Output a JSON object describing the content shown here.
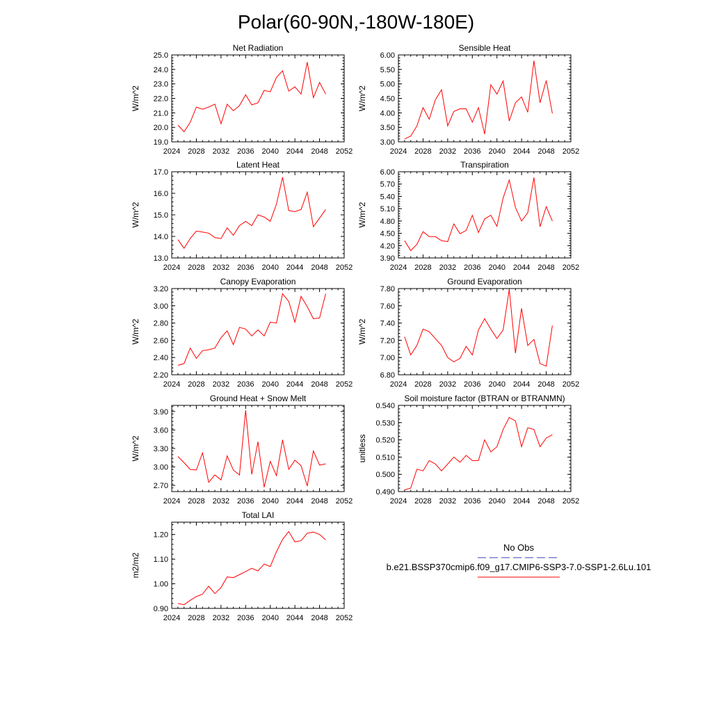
{
  "title": "Polar(60-90N,-180W-180E)",
  "colors": {
    "series": "#ff0000",
    "obs": "#3b3bbf",
    "axis": "#000000"
  },
  "legend": {
    "obs_label": "No Obs",
    "model_label": "b.e21.BSSP370cmip6.f09_g17.CMIP6-SSP3-7.0-SSP1-2.6Lu.101"
  },
  "chart_data": [
    {
      "type": "line",
      "title": "Net Radiation",
      "ylabel": "W/m^2",
      "xlim": [
        2024,
        2052
      ],
      "xticks": [
        2024,
        2028,
        2032,
        2036,
        2040,
        2044,
        2048,
        2052
      ],
      "ylim": [
        19.0,
        25.0
      ],
      "yticks": [
        "19.0",
        "20.0",
        "21.0",
        "22.0",
        "23.0",
        "24.0",
        "25.0"
      ],
      "x": [
        2025,
        2026,
        2027,
        2028,
        2029,
        2030,
        2031,
        2032,
        2033,
        2034,
        2035,
        2036,
        2037,
        2038,
        2039,
        2040,
        2041,
        2042,
        2043,
        2044,
        2045,
        2046,
        2047,
        2048,
        2049
      ],
      "series": [
        {
          "values": [
            20.15,
            19.7,
            20.35,
            21.4,
            21.25,
            21.4,
            21.6,
            20.25,
            21.6,
            21.15,
            21.5,
            22.25,
            21.55,
            21.7,
            22.55,
            22.45,
            23.45,
            23.9,
            22.5,
            22.8,
            22.3,
            24.5,
            22.05,
            23.1,
            22.3
          ]
        }
      ]
    },
    {
      "type": "line",
      "title": "Sensible Heat",
      "ylabel": "W/m^2",
      "xlim": [
        2024,
        2052
      ],
      "xticks": [
        2024,
        2028,
        2032,
        2036,
        2040,
        2044,
        2048,
        2052
      ],
      "ylim": [
        3.0,
        6.0
      ],
      "yticks": [
        "3.00",
        "3.50",
        "4.00",
        "4.50",
        "5.00",
        "5.50",
        "6.00"
      ],
      "x": [
        2025,
        2026,
        2027,
        2028,
        2029,
        2030,
        2031,
        2032,
        2033,
        2034,
        2035,
        2036,
        2037,
        2038,
        2039,
        2040,
        2041,
        2042,
        2043,
        2044,
        2045,
        2046,
        2047,
        2048,
        2049
      ],
      "series": [
        {
          "values": [
            3.1,
            3.2,
            3.55,
            4.18,
            3.78,
            4.45,
            4.8,
            3.55,
            4.05,
            4.14,
            4.14,
            3.68,
            4.18,
            3.27,
            4.97,
            4.65,
            5.1,
            3.72,
            4.35,
            4.55,
            4.02,
            5.8,
            4.35,
            5.12,
            3.98
          ]
        }
      ]
    },
    {
      "type": "line",
      "title": "Latent Heat",
      "ylabel": "W/m^2",
      "xlim": [
        2024,
        2052
      ],
      "xticks": [
        2024,
        2028,
        2032,
        2036,
        2040,
        2044,
        2048,
        2052
      ],
      "ylim": [
        13.0,
        17.0
      ],
      "yticks": [
        "13.0",
        "14.0",
        "15.0",
        "16.0",
        "17.0"
      ],
      "x": [
        2025,
        2026,
        2027,
        2028,
        2029,
        2030,
        2031,
        2032,
        2033,
        2034,
        2035,
        2036,
        2037,
        2038,
        2039,
        2040,
        2041,
        2042,
        2043,
        2044,
        2045,
        2046,
        2047,
        2048,
        2049
      ],
      "series": [
        {
          "values": [
            13.85,
            13.45,
            13.9,
            14.25,
            14.2,
            14.15,
            13.95,
            13.9,
            14.4,
            14.05,
            14.5,
            14.7,
            14.5,
            15.0,
            14.9,
            14.7,
            15.5,
            16.75,
            15.2,
            15.15,
            15.25,
            16.05,
            14.45,
            14.85,
            15.25
          ]
        }
      ]
    },
    {
      "type": "line",
      "title": "Transpiration",
      "ylabel": "W/m^2",
      "xlim": [
        2024,
        2052
      ],
      "xticks": [
        2024,
        2028,
        2032,
        2036,
        2040,
        2044,
        2048,
        2052
      ],
      "ylim": [
        3.9,
        6.0
      ],
      "yticks": [
        "3.90",
        "4.20",
        "4.50",
        "4.80",
        "5.10",
        "5.40",
        "5.70",
        "6.00"
      ],
      "x": [
        2025,
        2026,
        2027,
        2028,
        2029,
        2030,
        2031,
        2032,
        2033,
        2034,
        2035,
        2036,
        2037,
        2038,
        2039,
        2040,
        2041,
        2042,
        2043,
        2044,
        2045,
        2046,
        2047,
        2048,
        2049
      ],
      "series": [
        {
          "values": [
            4.32,
            4.08,
            4.23,
            4.54,
            4.42,
            4.42,
            4.32,
            4.3,
            4.73,
            4.49,
            4.57,
            4.94,
            4.52,
            4.85,
            4.94,
            4.67,
            5.36,
            5.8,
            5.13,
            4.8,
            5.0,
            5.86,
            4.66,
            5.15,
            4.8
          ]
        }
      ]
    },
    {
      "type": "line",
      "title": "Canopy Evaporation",
      "ylabel": "W/m^2",
      "xlim": [
        2024,
        2052
      ],
      "xticks": [
        2024,
        2028,
        2032,
        2036,
        2040,
        2044,
        2048,
        2052
      ],
      "ylim": [
        2.2,
        3.2
      ],
      "yticks": [
        "2.20",
        "2.40",
        "2.60",
        "2.80",
        "3.00",
        "3.20"
      ],
      "x": [
        2025,
        2026,
        2027,
        2028,
        2029,
        2030,
        2031,
        2032,
        2033,
        2034,
        2035,
        2036,
        2037,
        2038,
        2039,
        2040,
        2041,
        2042,
        2043,
        2044,
        2045,
        2046,
        2047,
        2048,
        2049
      ],
      "series": [
        {
          "values": [
            2.31,
            2.33,
            2.51,
            2.39,
            2.48,
            2.49,
            2.51,
            2.63,
            2.71,
            2.55,
            2.75,
            2.73,
            2.65,
            2.72,
            2.65,
            2.81,
            2.8,
            3.14,
            3.05,
            2.81,
            3.11,
            2.99,
            2.85,
            2.86,
            3.14
          ]
        }
      ]
    },
    {
      "type": "line",
      "title": "Ground Evaporation",
      "ylabel": "W/m^2",
      "xlim": [
        2024,
        2052
      ],
      "xticks": [
        2024,
        2028,
        2032,
        2036,
        2040,
        2044,
        2048,
        2052
      ],
      "ylim": [
        6.8,
        7.8
      ],
      "yticks": [
        "6.80",
        "7.00",
        "7.20",
        "7.40",
        "7.60",
        "7.80"
      ],
      "x": [
        2025,
        2026,
        2027,
        2028,
        2029,
        2030,
        2031,
        2032,
        2033,
        2034,
        2035,
        2036,
        2037,
        2038,
        2039,
        2040,
        2041,
        2042,
        2043,
        2044,
        2045,
        2046,
        2047,
        2048,
        2049
      ],
      "series": [
        {
          "values": [
            7.24,
            7.03,
            7.14,
            7.33,
            7.3,
            7.22,
            7.14,
            7.0,
            6.95,
            6.99,
            7.13,
            7.03,
            7.32,
            7.45,
            7.33,
            7.22,
            7.32,
            7.79,
            7.05,
            7.57,
            7.14,
            7.21,
            6.93,
            6.9,
            7.37
          ]
        }
      ]
    },
    {
      "type": "line",
      "title": "Ground Heat + Snow Melt",
      "ylabel": "W/m^2",
      "xlim": [
        2024,
        2052
      ],
      "xticks": [
        2024,
        2028,
        2032,
        2036,
        2040,
        2044,
        2048,
        2052
      ],
      "ylim": [
        2.6,
        4.0
      ],
      "yticks": [
        "2.70",
        "3.00",
        "3.30",
        "3.60",
        "3.90"
      ],
      "x": [
        2025,
        2026,
        2027,
        2028,
        2029,
        2030,
        2031,
        2032,
        2033,
        2034,
        2035,
        2036,
        2037,
        2038,
        2039,
        2040,
        2041,
        2042,
        2043,
        2044,
        2045,
        2046,
        2047,
        2048,
        2049
      ],
      "series": [
        {
          "values": [
            3.17,
            3.07,
            2.96,
            2.95,
            3.23,
            2.75,
            2.87,
            2.79,
            3.18,
            2.95,
            2.87,
            3.92,
            2.88,
            3.41,
            2.67,
            3.09,
            2.86,
            3.44,
            2.96,
            3.11,
            3.02,
            2.69,
            3.26,
            3.03,
            3.05
          ]
        }
      ]
    },
    {
      "type": "line",
      "title": "Soil moisture factor (BTRAN or BTRANMN)",
      "ylabel": "unitless",
      "xlim": [
        2024,
        2052
      ],
      "xticks": [
        2024,
        2028,
        2032,
        2036,
        2040,
        2044,
        2048,
        2052
      ],
      "ylim": [
        0.49,
        0.54
      ],
      "yticks": [
        "0.490",
        "0.500",
        "0.510",
        "0.520",
        "0.530",
        "0.540"
      ],
      "x": [
        2025,
        2026,
        2027,
        2028,
        2029,
        2030,
        2031,
        2032,
        2033,
        2034,
        2035,
        2036,
        2037,
        2038,
        2039,
        2040,
        2041,
        2042,
        2043,
        2044,
        2045,
        2046,
        2047,
        2048,
        2049
      ],
      "series": [
        {
          "values": [
            0.491,
            0.492,
            0.503,
            0.502,
            0.508,
            0.506,
            0.502,
            0.506,
            0.51,
            0.507,
            0.511,
            0.508,
            0.508,
            0.52,
            0.513,
            0.516,
            0.526,
            0.533,
            0.531,
            0.516,
            0.527,
            0.526,
            0.516,
            0.521,
            0.523
          ]
        }
      ]
    },
    {
      "type": "line",
      "title": "Total LAI",
      "ylabel": "m2/m2",
      "xlim": [
        2024,
        2052
      ],
      "xticks": [
        2024,
        2028,
        2032,
        2036,
        2040,
        2044,
        2048,
        2052
      ],
      "ylim": [
        0.9,
        1.25
      ],
      "yticks": [
        "0.90",
        "1.00",
        "1.10",
        "1.20"
      ],
      "x": [
        2025,
        2026,
        2027,
        2028,
        2029,
        2030,
        2031,
        2032,
        2033,
        2034,
        2035,
        2036,
        2037,
        2038,
        2039,
        2040,
        2041,
        2042,
        2043,
        2044,
        2045,
        2046,
        2047,
        2048,
        2049
      ],
      "series": [
        {
          "values": [
            0.92,
            0.915,
            0.933,
            0.948,
            0.958,
            0.99,
            0.96,
            0.985,
            1.028,
            1.025,
            1.037,
            1.05,
            1.063,
            1.052,
            1.08,
            1.07,
            1.13,
            1.18,
            1.212,
            1.17,
            1.175,
            1.205,
            1.21,
            1.2,
            1.178
          ]
        }
      ]
    }
  ]
}
